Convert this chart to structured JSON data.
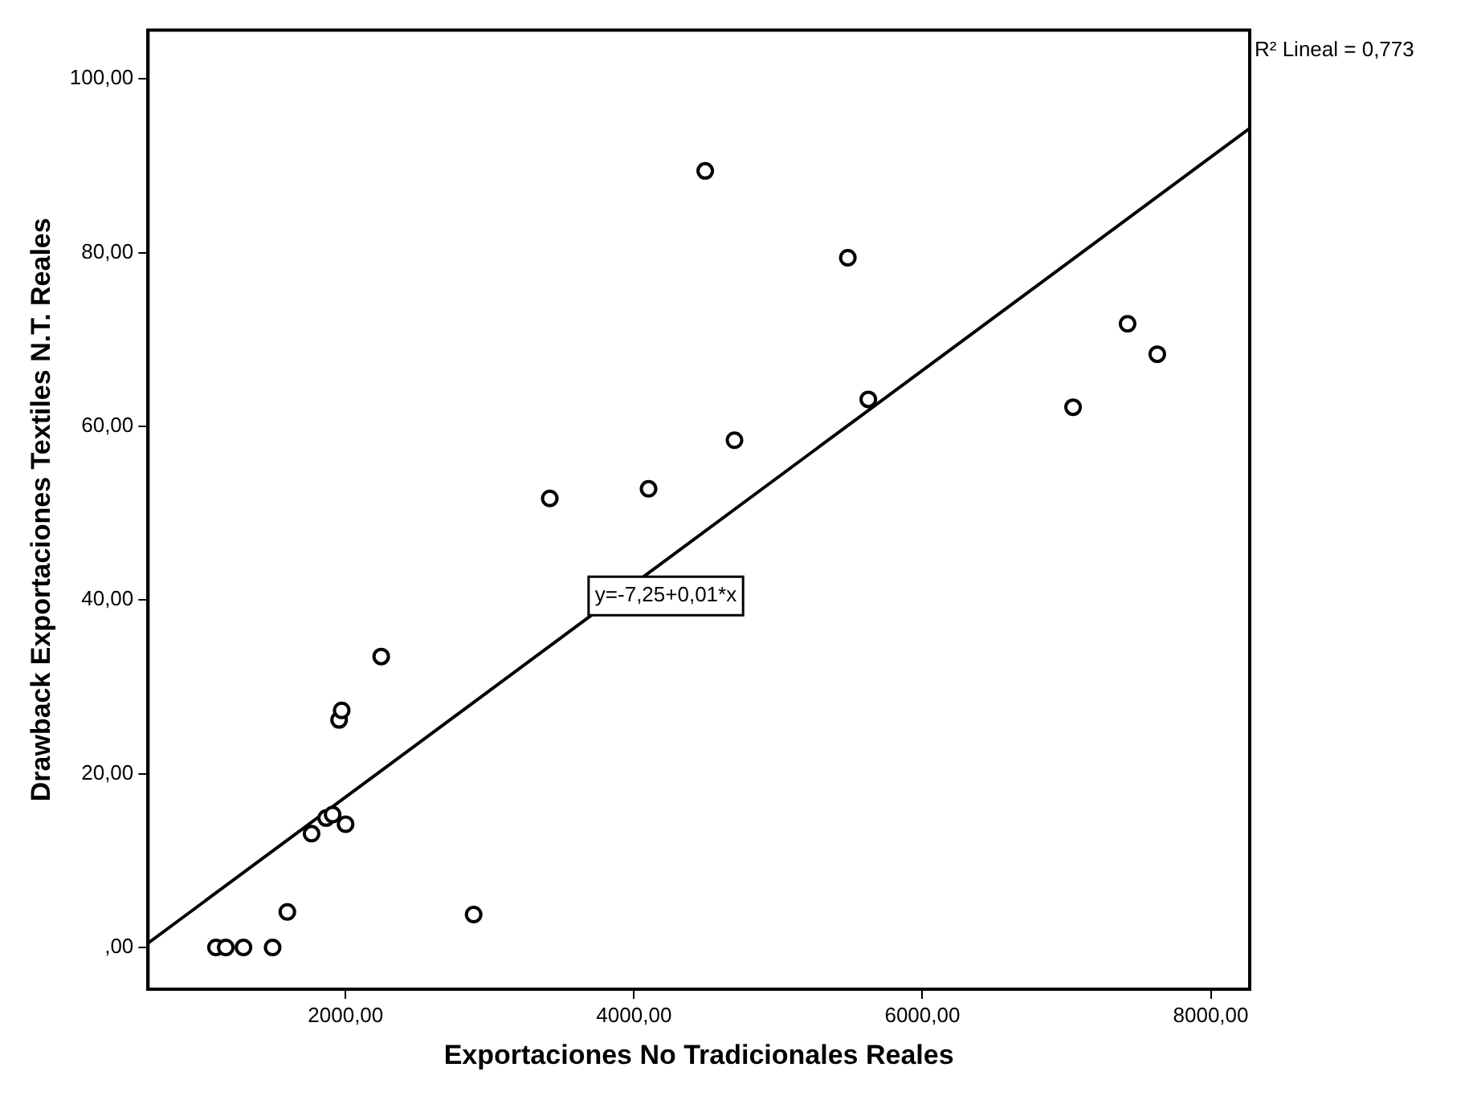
{
  "chart_data": {
    "type": "scatter",
    "xlabel": "Exportaciones No Tradicionales Reales",
    "ylabel": "Drawback Exportaciones Textiles N.T. Reales",
    "xlim": [
      630,
      8270
    ],
    "ylim": [
      -4.8,
      105.6
    ],
    "xticks": [
      {
        "value": 2000,
        "label": "2000,00"
      },
      {
        "value": 4000,
        "label": "4000,00"
      },
      {
        "value": 6000,
        "label": "6000,00"
      },
      {
        "value": 8000,
        "label": "8000,00"
      }
    ],
    "yticks": [
      {
        "value": 0,
        "label": ",00"
      },
      {
        "value": 20,
        "label": "20,00"
      },
      {
        "value": 40,
        "label": "40,00"
      },
      {
        "value": 60,
        "label": "60,00"
      },
      {
        "value": 80,
        "label": "80,00"
      },
      {
        "value": 100,
        "label": "100,00"
      }
    ],
    "grid": false,
    "legend": false,
    "series": [
      {
        "color": "#000000",
        "marker": "circle",
        "x": [
          1101,
          1169,
          1292,
          1494,
          1596,
          1764,
          1865,
          1910,
          2000,
          1955,
          1973,
          2247,
          2888,
          3416,
          4101,
          4494,
          4697,
          5483,
          5625,
          7045,
          7423,
          7629
        ],
        "values": [
          0,
          0,
          0,
          0,
          4.1,
          13.1,
          14.9,
          15.3,
          14.2,
          26.2,
          27.3,
          33.5,
          3.8,
          51.7,
          52.8,
          89.4,
          58.4,
          79.4,
          63.1,
          62.2,
          71.8,
          68.3
        ]
      },
      {
        "type": "line",
        "color": "#000000",
        "marker": "none",
        "x": [
          630,
          8270
        ],
        "values": [
          0.5,
          94.3
        ]
      }
    ],
    "annotations": [
      "y=-7,25+0,01*x",
      "R² Lineal = 0,773"
    ]
  }
}
